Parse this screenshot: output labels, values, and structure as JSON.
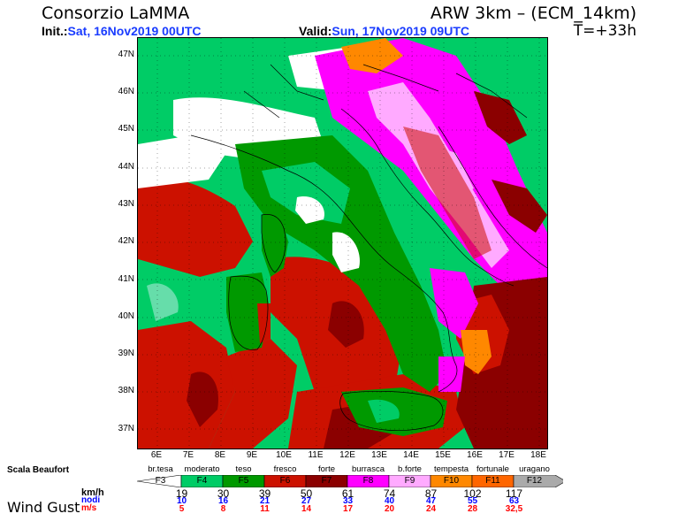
{
  "header": {
    "org": "Consorzio LaMMA",
    "model": "ARW 3km – (ECM_14km)",
    "init_label": "Init.:",
    "init_value": "Sat, 16Nov2019 00UTC",
    "valid_label": "Valid:",
    "valid_value": "Sun, 17Nov2019 09UTC",
    "lead": "T=+33h"
  },
  "axes": {
    "lat": [
      "47N",
      "46N",
      "45N",
      "44N",
      "43N",
      "42N",
      "41N",
      "40N",
      "39N",
      "38N",
      "37N"
    ],
    "lon": [
      "6E",
      "7E",
      "8E",
      "9E",
      "10E",
      "11E",
      "12E",
      "13E",
      "14E",
      "15E",
      "16E",
      "17E",
      "18E"
    ]
  },
  "legend": {
    "scale_title": "Scala Beaufort",
    "names": [
      "br.tesa",
      "moderato",
      "teso",
      "fresco",
      "forte",
      "burrasca",
      "b.forte",
      "tempesta",
      "fortunale",
      "uragano"
    ],
    "forces": [
      "F3",
      "F4",
      "F5",
      "F6",
      "F7",
      "F8",
      "F9",
      "F10",
      "F11",
      "F12"
    ],
    "colors": [
      "#ffffff",
      "#00cc66",
      "#009900",
      "#cc1100",
      "#8b0000",
      "#ff00ff",
      "#ffaaff",
      "#ff8800",
      "#ff6600",
      "#aaaaaa"
    ],
    "unit_kmh": "km/h",
    "unit_nodi": "nodi",
    "unit_ms": "m/s",
    "kmh": [
      "19",
      "30",
      "39",
      "50",
      "61",
      "74",
      "87",
      "102",
      "117"
    ],
    "nodi": [
      "10",
      "16",
      "21",
      "27",
      "33",
      "40",
      "47",
      "55",
      "63"
    ],
    "ms": [
      "5",
      "8",
      "11",
      "14",
      "17",
      "20",
      "24",
      "28",
      "32,5"
    ],
    "variable": "Wind Gust"
  }
}
